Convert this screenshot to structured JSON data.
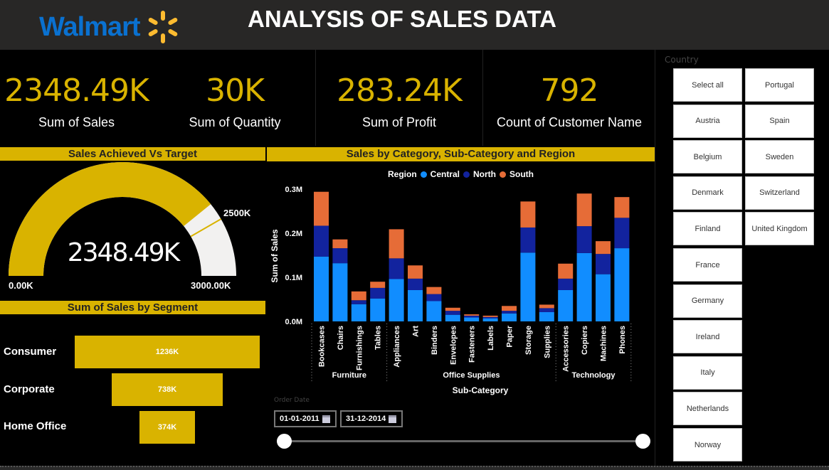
{
  "header": {
    "logo_text": "Walmart",
    "title": "ANALYSIS OF SALES DATA"
  },
  "kpis": [
    {
      "value": "2348.49K",
      "label": "Sum of Sales"
    },
    {
      "value": "30K",
      "label": "Sum of Quantity"
    },
    {
      "value": "283.24K",
      "label": "Sum of Profit"
    },
    {
      "value": "792",
      "label": "Count of Customer Name"
    }
  ],
  "gauge": {
    "title": "Sales Achieved Vs Target",
    "value_label": "2348.49K",
    "value": 2348.49,
    "min_label": "0.00K",
    "max_label": "3000.00K",
    "target_label": "2500K",
    "min": 0,
    "max": 3000,
    "target": 2500,
    "fill_color": "#d9b300",
    "track_color": "#f2f1f0"
  },
  "segments": {
    "title": "Sum of Sales by Segment",
    "items": [
      {
        "label": "Consumer",
        "value_label": "1236K",
        "value": 1236
      },
      {
        "label": "Corporate",
        "value_label": "738K",
        "value": 738
      },
      {
        "label": "Home Office",
        "value_label": "374K",
        "value": 374
      }
    ]
  },
  "chart_data": {
    "type": "bar",
    "stacked": true,
    "title": "Sales by Category, Sub-Category and Region",
    "xlabel": "Sub-Category",
    "ylabel": "Sum of Sales",
    "legend_title": "Region",
    "legend_position": "top",
    "ylim": [
      0,
      0.3
    ],
    "yticks": [
      "0.0M",
      "0.1M",
      "0.2M",
      "0.3M"
    ],
    "yunit": "M",
    "categories": [
      "Bookcases",
      "Chairs",
      "Furnishings",
      "Tables",
      "Appliances",
      "Art",
      "Binders",
      "Envelopes",
      "Fasteners",
      "Labels",
      "Paper",
      "Storage",
      "Supplies",
      "Accessories",
      "Copiers",
      "Machines",
      "Phones"
    ],
    "groups": [
      {
        "label": "Furniture",
        "count": 4
      },
      {
        "label": "Office Supplies",
        "count": 9
      },
      {
        "label": "Technology",
        "count": 4
      }
    ],
    "series": [
      {
        "name": "Central",
        "color": "#118dff",
        "values": [
          0.147,
          0.132,
          0.039,
          0.052,
          0.096,
          0.071,
          0.046,
          0.015,
          0.009,
          0.007,
          0.018,
          0.156,
          0.021,
          0.071,
          0.155,
          0.107,
          0.166
        ]
      },
      {
        "name": "North",
        "color": "#12239e",
        "values": [
          0.07,
          0.034,
          0.009,
          0.024,
          0.047,
          0.026,
          0.016,
          0.009,
          0.004,
          0.003,
          0.006,
          0.057,
          0.009,
          0.026,
          0.061,
          0.046,
          0.069
        ]
      },
      {
        "name": "South",
        "color": "#e66c37",
        "values": [
          0.077,
          0.02,
          0.02,
          0.014,
          0.066,
          0.03,
          0.016,
          0.007,
          0.003,
          0.003,
          0.011,
          0.059,
          0.008,
          0.034,
          0.074,
          0.029,
          0.047
        ]
      }
    ]
  },
  "date_slicer": {
    "label": "Order Date",
    "start": "01-01-2011",
    "end": "31-12-2014"
  },
  "country_slicer": {
    "label": "Country",
    "items": [
      "Select all",
      "Portugal",
      "Austria",
      "Spain",
      "Belgium",
      "Sweden",
      "Denmark",
      "Switzerland",
      "Finland",
      "United Kingdom",
      "France",
      "Germany",
      "Ireland",
      "Italy",
      "Netherlands",
      "Norway"
    ]
  }
}
